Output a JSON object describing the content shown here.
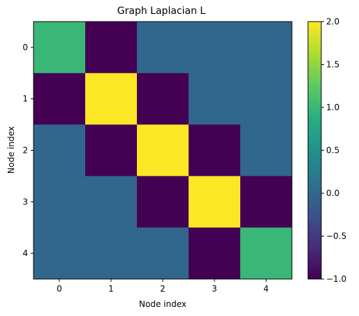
{
  "chart_data": {
    "type": "heatmap",
    "title": "Graph Laplacian L",
    "xlabel": "Node index",
    "ylabel": "Node index",
    "x_ticks": [
      "0",
      "1",
      "2",
      "3",
      "4"
    ],
    "y_ticks": [
      "0",
      "1",
      "2",
      "3",
      "4"
    ],
    "matrix": [
      [
        1,
        -1,
        0,
        0,
        0
      ],
      [
        -1,
        2,
        -1,
        0,
        0
      ],
      [
        0,
        -1,
        2,
        -1,
        0
      ],
      [
        0,
        0,
        -1,
        2,
        -1
      ],
      [
        0,
        0,
        0,
        -1,
        1
      ]
    ],
    "colormap": "viridis",
    "color_range": [
      -1.0,
      2.0
    ],
    "colorbar_ticks": [
      "−1.0",
      "−0.5",
      "0.0",
      "0.5",
      "1.0",
      "1.5",
      "2.0"
    ],
    "colorbar_tick_values": [
      -1.0,
      -0.5,
      0.0,
      0.5,
      1.0,
      1.5,
      2.0
    ],
    "grid": false
  }
}
